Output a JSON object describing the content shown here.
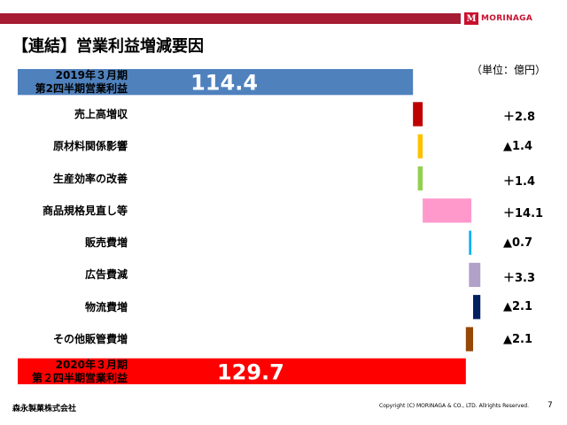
{
  "header": {
    "title": "【連結】営業利益増減要因",
    "logo_mark": "M",
    "logo_text": "MORINAGA",
    "unit": "（単位：億円）",
    "bar_color": "#a61c33"
  },
  "chart_data": {
    "type": "waterfall",
    "title": "【連結】営業利益増減要因",
    "unit": "億円",
    "items": [
      {
        "label": "2019年３月期\n第2四半期営業利益",
        "value": 114.4,
        "kind": "total",
        "display": "114.4",
        "color": "#4f81bd"
      },
      {
        "label": "売上高増収",
        "value": 2.8,
        "kind": "delta",
        "display": "＋2.8",
        "color": "#c00000"
      },
      {
        "label": "原材料関係影響",
        "value": -1.4,
        "kind": "delta",
        "display": "▲1.4",
        "color": "#ffc000"
      },
      {
        "label": "生産効率の改善",
        "value": 1.4,
        "kind": "delta",
        "display": "＋1.4",
        "color": "#92d050"
      },
      {
        "label": "商品規格見直し等",
        "value": 14.1,
        "kind": "delta",
        "display": "＋14.1",
        "color": "#ff99cc"
      },
      {
        "label": "販売費増",
        "value": -0.7,
        "kind": "delta",
        "display": "▲0.7",
        "color": "#00b0f0"
      },
      {
        "label": "広告費減",
        "value": 3.3,
        "kind": "delta",
        "display": "＋3.3",
        "color": "#b1a0c7"
      },
      {
        "label": "物流費増",
        "value": -2.1,
        "kind": "delta",
        "display": "▲2.1",
        "color": "#002060"
      },
      {
        "label": "その他販管費増",
        "value": -2.1,
        "kind": "delta",
        "display": "▲2.1",
        "color": "#974706"
      },
      {
        "label": "2020年３月期\n第２四半期営業利益",
        "value": 129.7,
        "kind": "total",
        "display": "129.7",
        "color": "#ff0000"
      }
    ]
  },
  "footer": {
    "company": "森永製菓株式会社",
    "copyright": "Copyright (C) MORINAGA & CO., LTD. Allrights Reserved.",
    "page": "7"
  }
}
